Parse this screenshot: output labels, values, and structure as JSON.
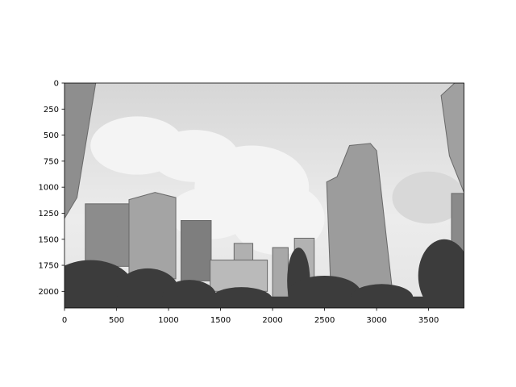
{
  "chart_data": {
    "type": "image",
    "xlim": [
      0,
      3840
    ],
    "ylim": [
      2160,
      0
    ],
    "xticks": [
      0,
      500,
      1000,
      1500,
      2000,
      2500,
      3000,
      3500
    ],
    "yticks": [
      0,
      250,
      500,
      750,
      1000,
      1250,
      1500,
      1750,
      2000
    ]
  }
}
